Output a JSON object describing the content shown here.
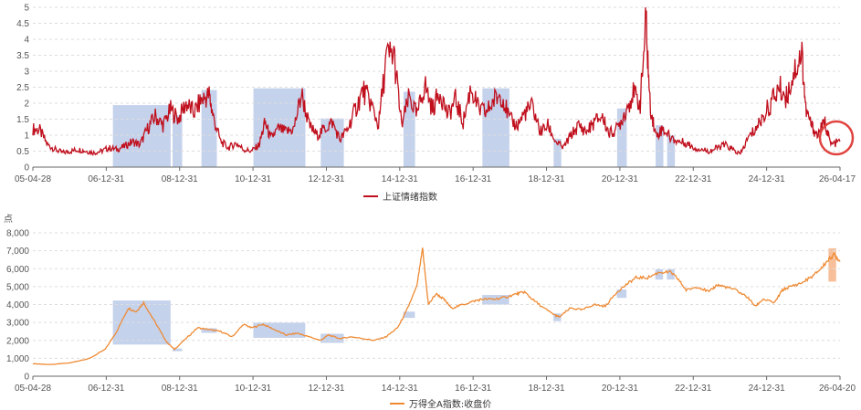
{
  "chart_data": [
    {
      "type": "line",
      "title": "",
      "xlabel": "",
      "ylabel": "",
      "ylim": [
        0,
        5
      ],
      "yticks": [
        "0",
        "0.5",
        "1",
        "1.5",
        "2",
        "2.5",
        "3",
        "3.5",
        "4",
        "4.5",
        "5"
      ],
      "xtick_labels": [
        "05-04-28",
        "06-12-31",
        "08-12-31",
        "10-12-31",
        "12-12-31",
        "14-12-31",
        "16-12-31",
        "18-12-31",
        "20-12-31",
        "22-12-31",
        "24-12-31",
        "26-04-17"
      ],
      "x_range_years": [
        2005.32,
        2026.29
      ],
      "series": [
        {
          "name": "上证情绪指数",
          "color": "#c0101e",
          "points": [
            [
              2005.32,
              1.2
            ],
            [
              2005.5,
              1.15
            ],
            [
              2005.7,
              0.7
            ],
            [
              2005.9,
              0.55
            ],
            [
              2006.1,
              0.45
            ],
            [
              2006.3,
              0.5
            ],
            [
              2006.5,
              0.55
            ],
            [
              2006.7,
              0.5
            ],
            [
              2006.9,
              0.45
            ],
            [
              2007.1,
              0.5
            ],
            [
              2007.3,
              0.6
            ],
            [
              2007.5,
              0.55
            ],
            [
              2007.7,
              0.65
            ],
            [
              2007.9,
              0.8
            ],
            [
              2008.1,
              0.7
            ],
            [
              2008.3,
              1.2
            ],
            [
              2008.5,
              1.6
            ],
            [
              2008.7,
              1.3
            ],
            [
              2008.9,
              1.8
            ],
            [
              2009.1,
              1.5
            ],
            [
              2009.3,
              2.0
            ],
            [
              2009.5,
              1.7
            ],
            [
              2009.7,
              2.1
            ],
            [
              2009.9,
              2.25
            ],
            [
              2010.0,
              1.6
            ],
            [
              2010.2,
              0.8
            ],
            [
              2010.4,
              0.6
            ],
            [
              2010.6,
              0.75
            ],
            [
              2010.8,
              0.55
            ],
            [
              2011.0,
              0.5
            ],
            [
              2011.2,
              0.7
            ],
            [
              2011.35,
              1.4
            ],
            [
              2011.5,
              0.9
            ],
            [
              2011.7,
              1.2
            ],
            [
              2011.9,
              1.1
            ],
            [
              2012.1,
              1.2
            ],
            [
              2012.3,
              2.3
            ],
            [
              2012.5,
              1.3
            ],
            [
              2012.7,
              1.0
            ],
            [
              2012.9,
              1.2
            ],
            [
              2013.1,
              1.4
            ],
            [
              2013.3,
              0.85
            ],
            [
              2013.5,
              1.2
            ],
            [
              2013.7,
              1.8
            ],
            [
              2013.9,
              2.4
            ],
            [
              2014.1,
              2.0
            ],
            [
              2014.3,
              1.3
            ],
            [
              2014.5,
              3.4
            ],
            [
              2014.7,
              3.55
            ],
            [
              2014.9,
              1.3
            ],
            [
              2015.1,
              2.2
            ],
            [
              2015.3,
              1.6
            ],
            [
              2015.5,
              2.6
            ],
            [
              2015.7,
              1.8
            ],
            [
              2015.9,
              2.4
            ],
            [
              2016.1,
              1.6
            ],
            [
              2016.3,
              2.1
            ],
            [
              2016.5,
              1.4
            ],
            [
              2016.7,
              2.5
            ],
            [
              2016.9,
              1.8
            ],
            [
              2017.1,
              1.7
            ],
            [
              2017.3,
              2.1
            ],
            [
              2017.5,
              2.3
            ],
            [
              2017.7,
              1.5
            ],
            [
              2017.9,
              1.3
            ],
            [
              2018.1,
              1.7
            ],
            [
              2018.3,
              1.9
            ],
            [
              2018.5,
              1.1
            ],
            [
              2018.7,
              1.3
            ],
            [
              2018.9,
              0.8
            ],
            [
              2019.1,
              0.6
            ],
            [
              2019.3,
              1.0
            ],
            [
              2019.5,
              1.3
            ],
            [
              2019.7,
              1.1
            ],
            [
              2019.9,
              1.4
            ],
            [
              2020.1,
              1.6
            ],
            [
              2020.3,
              1.05
            ],
            [
              2020.5,
              1.2
            ],
            [
              2020.7,
              1.7
            ],
            [
              2020.9,
              2.3
            ],
            [
              2021.1,
              2.0
            ],
            [
              2021.25,
              4.6
            ],
            [
              2021.35,
              2.0
            ],
            [
              2021.5,
              1.0
            ],
            [
              2021.7,
              1.2
            ],
            [
              2021.9,
              0.9
            ],
            [
              2022.1,
              0.8
            ],
            [
              2022.3,
              0.75
            ],
            [
              2022.5,
              0.6
            ],
            [
              2022.7,
              0.55
            ],
            [
              2022.9,
              0.5
            ],
            [
              2023.1,
              0.6
            ],
            [
              2023.3,
              0.7
            ],
            [
              2023.5,
              0.55
            ],
            [
              2023.7,
              0.4
            ],
            [
              2023.9,
              0.9
            ],
            [
              2024.1,
              1.2
            ],
            [
              2024.3,
              1.6
            ],
            [
              2024.5,
              2.0
            ],
            [
              2024.7,
              2.5
            ],
            [
              2024.9,
              2.2
            ],
            [
              2025.1,
              3.0
            ],
            [
              2025.3,
              3.6
            ],
            [
              2025.4,
              1.8
            ],
            [
              2025.55,
              1.3
            ],
            [
              2025.7,
              1.0
            ],
            [
              2025.9,
              1.4
            ],
            [
              2026.05,
              0.7
            ],
            [
              2026.29,
              0.8
            ]
          ]
        }
      ],
      "highlight_color": "#9fb4e0",
      "highlight_spans": [
        [
          2007.4,
          2008.9
        ],
        [
          2008.95,
          2009.2
        ],
        [
          2009.7,
          2010.1
        ],
        [
          2011.05,
          2012.4
        ],
        [
          2012.8,
          2013.4
        ],
        [
          2014.95,
          2015.25
        ],
        [
          2017.0,
          2017.7
        ],
        [
          2018.85,
          2019.05
        ],
        [
          2020.5,
          2020.75
        ],
        [
          2021.5,
          2021.7
        ],
        [
          2021.8,
          2022.0
        ]
      ],
      "circle_marker_at": [
        2026.25,
        0.8
      ]
    },
    {
      "type": "line",
      "title": "",
      "xlabel": "",
      "ylabel": "点",
      "ylim": [
        0,
        8000
      ],
      "yticks": [
        "0",
        "1,000",
        "2,000",
        "3,000",
        "4,000",
        "5,000",
        "6,000",
        "7,000",
        "8,000"
      ],
      "xtick_labels": [
        "05-04-28",
        "06-12-31",
        "08-12-31",
        "10-12-31",
        "12-12-31",
        "14-12-31",
        "16-12-31",
        "18-12-31",
        "20-12-31",
        "22-12-31",
        "24-12-31",
        "26-04-20"
      ],
      "x_range_years": [
        2005.32,
        2026.3
      ],
      "series": [
        {
          "name": "万得全A指数:收盘价",
          "color": "#ef8a33",
          "points": [
            [
              2005.32,
              700
            ],
            [
              2005.8,
              650
            ],
            [
              2006.3,
              750
            ],
            [
              2006.8,
              1000
            ],
            [
              2007.2,
              1500
            ],
            [
              2007.5,
              2500
            ],
            [
              2007.8,
              3800
            ],
            [
              2008.0,
              3600
            ],
            [
              2008.2,
              4100
            ],
            [
              2008.5,
              3000
            ],
            [
              2008.8,
              1900
            ],
            [
              2009.0,
              1500
            ],
            [
              2009.3,
              2100
            ],
            [
              2009.6,
              2700
            ],
            [
              2009.9,
              2600
            ],
            [
              2010.2,
              2500
            ],
            [
              2010.5,
              2200
            ],
            [
              2010.8,
              2900
            ],
            [
              2011.0,
              2700
            ],
            [
              2011.3,
              2900
            ],
            [
              2011.6,
              2600
            ],
            [
              2011.9,
              2300
            ],
            [
              2012.2,
              2400
            ],
            [
              2012.5,
              2200
            ],
            [
              2012.8,
              2000
            ],
            [
              2013.0,
              2300
            ],
            [
              2013.3,
              2100
            ],
            [
              2013.6,
              2200
            ],
            [
              2013.9,
              2100
            ],
            [
              2014.2,
              2000
            ],
            [
              2014.5,
              2200
            ],
            [
              2014.8,
              2700
            ],
            [
              2015.0,
              3500
            ],
            [
              2015.3,
              5000
            ],
            [
              2015.45,
              7100
            ],
            [
              2015.6,
              4000
            ],
            [
              2015.8,
              4600
            ],
            [
              2016.0,
              4300
            ],
            [
              2016.2,
              3800
            ],
            [
              2016.5,
              4000
            ],
            [
              2016.8,
              4200
            ],
            [
              2017.0,
              4300
            ],
            [
              2017.3,
              4300
            ],
            [
              2017.6,
              4400
            ],
            [
              2017.9,
              4600
            ],
            [
              2018.1,
              4700
            ],
            [
              2018.3,
              4300
            ],
            [
              2018.6,
              3800
            ],
            [
              2018.9,
              3400
            ],
            [
              2019.0,
              3300
            ],
            [
              2019.3,
              3800
            ],
            [
              2019.6,
              3700
            ],
            [
              2019.9,
              4000
            ],
            [
              2020.2,
              3900
            ],
            [
              2020.5,
              4700
            ],
            [
              2020.8,
              5200
            ],
            [
              2021.0,
              5500
            ],
            [
              2021.3,
              5500
            ],
            [
              2021.6,
              5800
            ],
            [
              2021.9,
              5800
            ],
            [
              2022.1,
              5400
            ],
            [
              2022.3,
              4800
            ],
            [
              2022.6,
              5000
            ],
            [
              2022.9,
              4700
            ],
            [
              2023.1,
              5100
            ],
            [
              2023.3,
              5000
            ],
            [
              2023.6,
              4800
            ],
            [
              2023.9,
              4400
            ],
            [
              2024.1,
              3900
            ],
            [
              2024.3,
              4300
            ],
            [
              2024.6,
              4100
            ],
            [
              2024.8,
              4800
            ],
            [
              2025.0,
              5000
            ],
            [
              2025.3,
              5200
            ],
            [
              2025.6,
              5600
            ],
            [
              2025.8,
              6000
            ],
            [
              2026.0,
              6500
            ],
            [
              2026.15,
              6800
            ],
            [
              2026.3,
              6400
            ]
          ]
        }
      ],
      "highlight_color": "#9fb4e0",
      "highlight_spans": [
        [
          2007.4,
          2008.9
        ],
        [
          2008.95,
          2009.2
        ],
        [
          2009.7,
          2010.1
        ],
        [
          2011.05,
          2012.4
        ],
        [
          2012.8,
          2013.4
        ],
        [
          2014.95,
          2015.25
        ],
        [
          2017.0,
          2017.7
        ],
        [
          2018.85,
          2019.05
        ],
        [
          2020.5,
          2020.75
        ],
        [
          2021.5,
          2021.7
        ],
        [
          2021.8,
          2022.0
        ]
      ],
      "current_span_color": "#f6b58a",
      "current_span": [
        2026.0,
        2026.2
      ]
    }
  ]
}
